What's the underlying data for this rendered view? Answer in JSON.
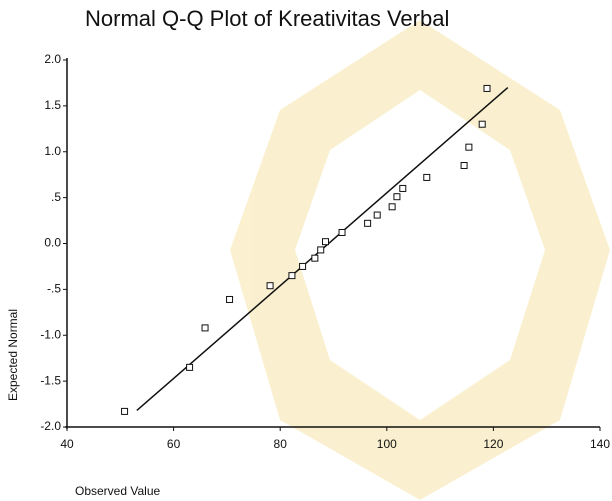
{
  "chart_data": {
    "type": "scatter",
    "title": "Normal Q-Q Plot of Kreativitas Verbal",
    "x_label": "Observed Value",
    "y_label": "Expected Normal",
    "x": [
      50.8,
      63.0,
      65.9,
      70.5,
      78.1,
      82.2,
      84.2,
      86.5,
      87.6,
      88.5,
      91.6,
      96.4,
      98.2,
      101.0,
      101.9,
      103.0,
      107.5,
      114.5,
      115.4,
      117.9,
      118.8
    ],
    "y": [
      -1.83,
      -1.35,
      -0.92,
      -0.61,
      -0.46,
      -0.35,
      -0.25,
      -0.16,
      -0.07,
      0.02,
      0.12,
      0.22,
      0.31,
      0.4,
      0.51,
      0.6,
      0.72,
      0.85,
      1.05,
      1.3,
      1.69
    ],
    "color": "#111111",
    "reference_line": {
      "x": [
        53.1,
        122.7
      ],
      "y": [
        -1.82,
        1.7
      ]
    },
    "xlim": [
      40,
      140
    ],
    "ylim": [
      -2,
      2
    ],
    "xticks": [
      40,
      60,
      80,
      100,
      120,
      140
    ],
    "yticks": [
      {
        "value": 2,
        "label": "2.0"
      },
      {
        "value": 1.5,
        "label": "1.5"
      },
      {
        "value": 1,
        "label": "1.0"
      },
      {
        "value": 0.5,
        "label": ".5"
      },
      {
        "value": 0,
        "label": "0.0"
      },
      {
        "value": -0.5,
        "label": "-.5"
      },
      {
        "value": -1,
        "label": "-1.0"
      },
      {
        "value": -1.5,
        "label": "-1.5"
      },
      {
        "value": -2,
        "label": "-2.0"
      }
    ]
  }
}
